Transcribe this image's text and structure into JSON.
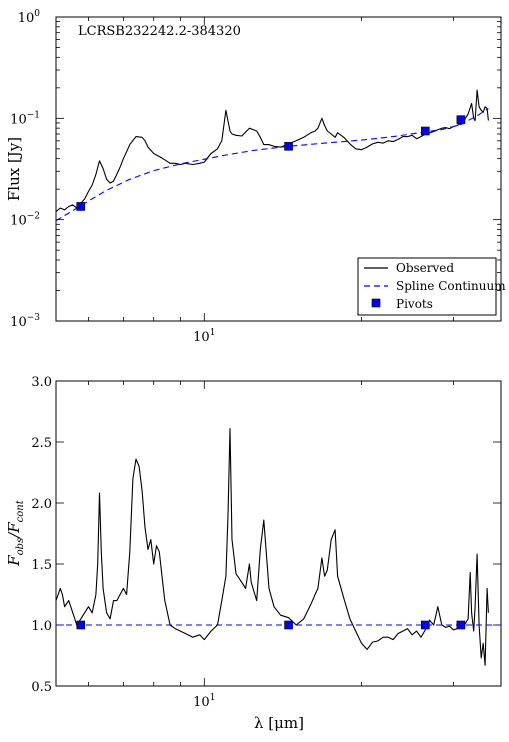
{
  "chart_data": [
    {
      "type": "line",
      "title": "LCRSB232242.2-384320",
      "xlabel": "",
      "ylabel": "Flux [Jy]",
      "xscale": "log",
      "yscale": "log",
      "xlim": [
        5.2,
        37
      ],
      "ylim": [
        0.001,
        1
      ],
      "xticks": [
        {
          "value": 10,
          "label": "10",
          "exp": "1"
        }
      ],
      "yticks": [
        {
          "value": 0.001,
          "label": "10",
          "exp": "−3"
        },
        {
          "value": 0.01,
          "label": "10",
          "exp": "−2"
        },
        {
          "value": 0.1,
          "label": "10",
          "exp": "−1"
        },
        {
          "value": 1,
          "label": "10",
          "exp": "0"
        }
      ],
      "legend": {
        "position": "bottom-right",
        "entries": [
          {
            "label": "Observed",
            "style": "solid-line"
          },
          {
            "label": "Spline Continuum",
            "style": "dashed-line"
          },
          {
            "label": "Pivots",
            "style": "square-marker"
          }
        ]
      },
      "series": [
        {
          "name": "Observed",
          "color": "#000000",
          "x": [
            5.2,
            5.3,
            5.4,
            5.5,
            5.6,
            5.7,
            5.8,
            5.9,
            6.0,
            6.1,
            6.2,
            6.3,
            6.4,
            6.5,
            6.6,
            6.7,
            6.8,
            6.9,
            7.0,
            7.2,
            7.4,
            7.6,
            7.7,
            7.8,
            8.0,
            8.2,
            8.4,
            8.6,
            8.8,
            9.0,
            9.2,
            9.5,
            9.8,
            10.0,
            10.3,
            10.6,
            10.8,
            11.0,
            11.2,
            11.3,
            11.5,
            11.8,
            12.2,
            12.6,
            12.8,
            13.0,
            13.3,
            13.6,
            14.0,
            14.5,
            15.0,
            15.5,
            16.0,
            16.3,
            16.5,
            16.8,
            17.0,
            17.2,
            17.5,
            17.8,
            18.0,
            18.5,
            19.0,
            19.5,
            20.0,
            20.5,
            21.0,
            21.5,
            22.0,
            22.5,
            23.0,
            23.5,
            24.0,
            24.5,
            25.0,
            25.5,
            26.0,
            26.5,
            27.0,
            27.5,
            28.0,
            28.5,
            29.0,
            29.5,
            30.0,
            30.5,
            31.0,
            31.5,
            32.0,
            32.5,
            32.8,
            33.0,
            33.3,
            33.6,
            33.9,
            34.2,
            34.5,
            34.8,
            35.0
          ],
          "y": [
            0.012,
            0.013,
            0.0125,
            0.0135,
            0.014,
            0.013,
            0.0145,
            0.016,
            0.019,
            0.022,
            0.028,
            0.038,
            0.032,
            0.025,
            0.023,
            0.024,
            0.028,
            0.033,
            0.04,
            0.055,
            0.066,
            0.065,
            0.06,
            0.052,
            0.045,
            0.042,
            0.039,
            0.036,
            0.036,
            0.035,
            0.036,
            0.035,
            0.036,
            0.037,
            0.045,
            0.05,
            0.06,
            0.12,
            0.075,
            0.07,
            0.068,
            0.067,
            0.08,
            0.075,
            0.065,
            0.055,
            0.055,
            0.053,
            0.052,
            0.056,
            0.06,
            0.065,
            0.072,
            0.075,
            0.08,
            0.1,
            0.085,
            0.075,
            0.07,
            0.065,
            0.072,
            0.065,
            0.056,
            0.05,
            0.049,
            0.052,
            0.056,
            0.058,
            0.057,
            0.06,
            0.059,
            0.062,
            0.066,
            0.066,
            0.068,
            0.063,
            0.066,
            0.07,
            0.072,
            0.074,
            0.077,
            0.08,
            0.081,
            0.079,
            0.083,
            0.085,
            0.09,
            0.097,
            0.11,
            0.14,
            0.1,
            0.095,
            0.19,
            0.13,
            0.12,
            0.115,
            0.13,
            0.125,
            0.095
          ]
        },
        {
          "name": "Spline Continuum",
          "color": "#0000ff",
          "x": [
            5.2,
            5.5,
            5.9,
            6.5,
            7.2,
            8.0,
            9.0,
            10.0,
            11.0,
            12.5,
            14.5,
            17.0,
            20.0,
            23.0,
            26.0,
            28.5,
            31.0,
            33.5,
            35.0
          ],
          "y": [
            0.0098,
            0.0116,
            0.0145,
            0.0195,
            0.025,
            0.0305,
            0.0355,
            0.0395,
            0.0435,
            0.0485,
            0.053,
            0.057,
            0.061,
            0.066,
            0.0725,
            0.0775,
            0.087,
            0.108,
            0.125
          ]
        },
        {
          "name": "Pivots",
          "color": "#0000ff",
          "marker": "square",
          "x": [
            5.8,
            14.5,
            26.5,
            31.0
          ],
          "y": [
            0.0135,
            0.053,
            0.075,
            0.097
          ]
        }
      ]
    },
    {
      "type": "line",
      "title": "",
      "xlabel": "λ [μm]",
      "ylabel": "Fobs/Fcont",
      "xscale": "log",
      "yscale": "linear",
      "xlim": [
        5.2,
        37
      ],
      "ylim": [
        0.5,
        3.0
      ],
      "xticks": [
        {
          "value": 10,
          "label": "10",
          "exp": "1"
        }
      ],
      "yticks": [
        {
          "value": 0.5,
          "label": "0.5"
        },
        {
          "value": 1.0,
          "label": "1.0"
        },
        {
          "value": 1.5,
          "label": "1.5"
        },
        {
          "value": 2.0,
          "label": "2.0"
        },
        {
          "value": 2.5,
          "label": "2.5"
        },
        {
          "value": 3.0,
          "label": "3.0"
        }
      ],
      "series": [
        {
          "name": "Observed",
          "color": "#000000",
          "x": [
            5.2,
            5.3,
            5.35,
            5.4,
            5.5,
            5.6,
            5.7,
            5.8,
            5.9,
            6.0,
            6.1,
            6.2,
            6.25,
            6.3,
            6.35,
            6.4,
            6.5,
            6.6,
            6.7,
            6.8,
            6.9,
            7.0,
            7.1,
            7.2,
            7.3,
            7.4,
            7.5,
            7.6,
            7.7,
            7.8,
            7.9,
            8.0,
            8.1,
            8.2,
            8.3,
            8.4,
            8.6,
            8.8,
            9.0,
            9.2,
            9.5,
            9.8,
            10.0,
            10.3,
            10.6,
            10.8,
            11.0,
            11.1,
            11.2,
            11.3,
            11.5,
            11.8,
            12.0,
            12.2,
            12.3,
            12.6,
            12.8,
            13.0,
            13.3,
            13.6,
            14.0,
            14.5,
            15.0,
            15.5,
            16.0,
            16.3,
            16.5,
            16.8,
            17.0,
            17.2,
            17.5,
            17.8,
            18.0,
            18.5,
            19.0,
            19.5,
            20.0,
            20.5,
            21.0,
            21.5,
            22.0,
            22.5,
            23.0,
            23.5,
            24.0,
            24.5,
            25.0,
            25.5,
            26.0,
            26.5,
            27.0,
            27.5,
            28.0,
            28.5,
            29.0,
            29.5,
            30.0,
            30.5,
            31.0,
            31.5,
            32.0,
            32.3,
            32.5,
            32.8,
            33.0,
            33.3,
            33.6,
            33.9,
            34.2,
            34.5,
            34.8,
            35.0
          ],
          "y": [
            1.2,
            1.3,
            1.25,
            1.15,
            1.2,
            1.1,
            1.0,
            1.05,
            1.1,
            1.15,
            1.1,
            1.25,
            1.5,
            2.08,
            1.6,
            1.3,
            1.1,
            1.05,
            1.2,
            1.2,
            1.25,
            1.3,
            1.25,
            1.6,
            2.2,
            2.36,
            2.3,
            2.1,
            1.8,
            1.62,
            1.7,
            1.5,
            1.65,
            1.6,
            1.4,
            1.2,
            1.0,
            0.97,
            0.95,
            0.93,
            0.9,
            0.92,
            0.88,
            0.95,
            1.0,
            1.2,
            1.4,
            1.9,
            2.61,
            1.7,
            1.42,
            1.35,
            1.3,
            1.5,
            1.35,
            1.2,
            1.62,
            1.86,
            1.3,
            1.15,
            1.08,
            1.06,
            1.0,
            1.05,
            1.17,
            1.25,
            1.3,
            1.55,
            1.4,
            1.45,
            1.7,
            1.78,
            1.4,
            1.22,
            1.05,
            0.95,
            0.85,
            0.8,
            0.86,
            0.87,
            0.9,
            0.9,
            0.88,
            0.93,
            0.95,
            0.97,
            0.92,
            0.95,
            0.9,
            0.96,
            1.04,
            1.0,
            1.15,
            1.0,
            0.98,
            0.99,
            0.96,
            0.97,
            0.99,
            1.0,
            1.05,
            1.43,
            1.1,
            0.95,
            1.15,
            1.58,
            1.0,
            0.73,
            0.85,
            0.67,
            1.3,
            1.1
          ],
          "_note": ""
        },
        {
          "name": "Spline Continuum",
          "color": "#0000ff",
          "x": [
            5.2,
            37
          ],
          "y": [
            1.0,
            1.0
          ]
        },
        {
          "name": "Pivots",
          "color": "#0000ff",
          "marker": "square",
          "x": [
            5.8,
            14.5,
            26.5,
            31.0
          ],
          "y": [
            1.0,
            1.0,
            1.0,
            1.0
          ]
        }
      ]
    }
  ]
}
